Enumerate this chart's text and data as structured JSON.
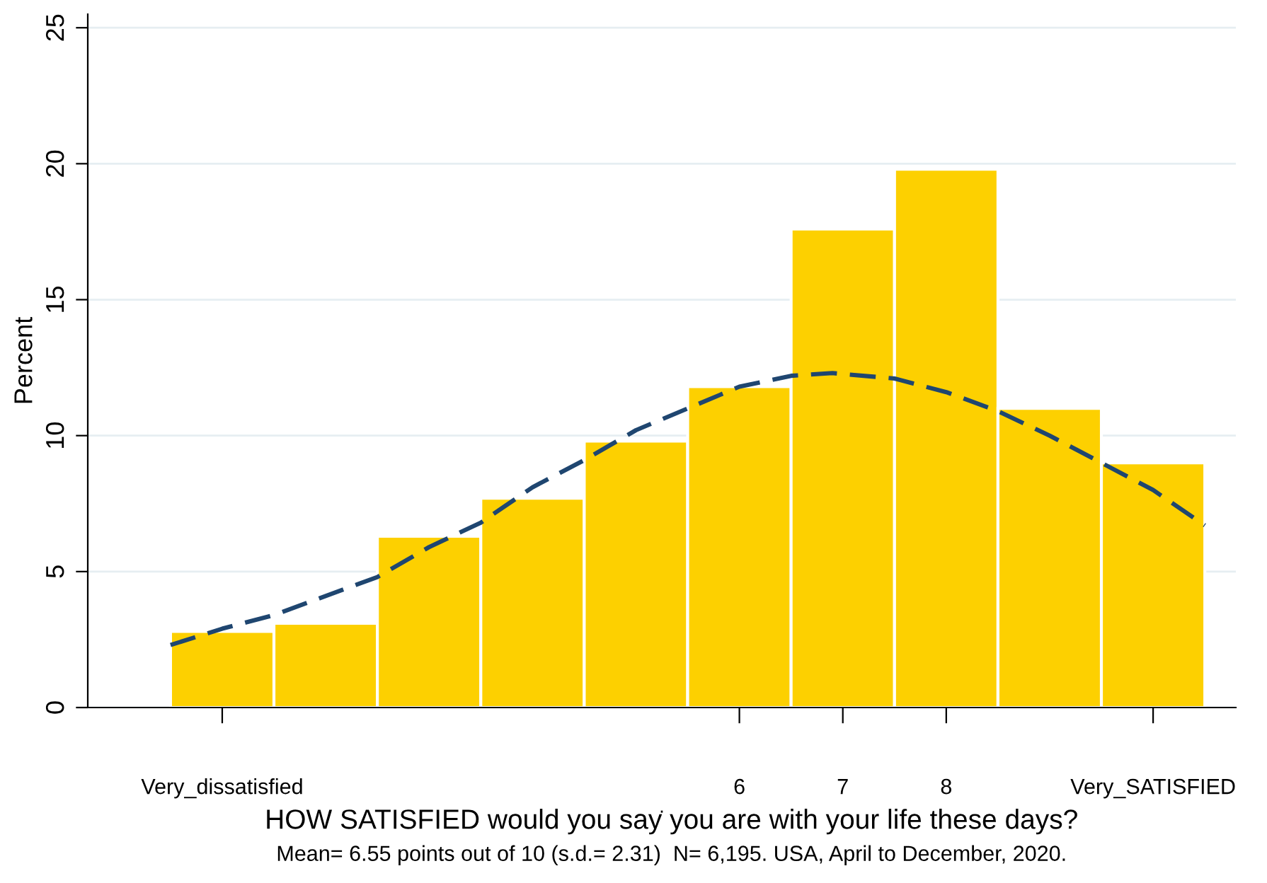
{
  "chart_data": {
    "type": "histogram",
    "ylabel": "Percent",
    "xlabel": ".",
    "annotations": [
      "HOW SATISFIED would you say you are with your life these days?",
      "Mean= 6.55 points out of 10 (s.d.= 2.31)  N= 6,195. USA, April to December, 2020."
    ],
    "bins": [
      0.5,
      1.5,
      2.5,
      3.5,
      4.5,
      5.5,
      6.5,
      7.5,
      8.5,
      9.5,
      10.5
    ],
    "series": [
      {
        "type": "histogram",
        "color": "#fdd000",
        "values": [
          2.8,
          3.1,
          6.3,
          7.7,
          9.8,
          11.8,
          17.6,
          19.8,
          11.0,
          9.0
        ]
      },
      {
        "type": "line",
        "color": "#1f4670",
        "line_style": "dashed",
        "x": [
          0.5,
          1.0,
          1.5,
          2.0,
          2.5,
          3.0,
          3.5,
          4.0,
          4.5,
          5.0,
          5.5,
          6.0,
          6.5,
          6.9,
          7.5,
          8.0,
          8.5,
          9.0,
          9.5,
          10.0,
          10.5
        ],
        "values": [
          2.3,
          2.9,
          3.4,
          4.1,
          4.8,
          5.9,
          6.8,
          8.1,
          9.1,
          10.2,
          11.0,
          11.8,
          12.2,
          12.3,
          12.1,
          11.6,
          10.9,
          10.0,
          9.0,
          8.0,
          6.7
        ]
      }
    ],
    "xlim": [
      -0.3,
      10.8
    ],
    "xticks": [
      {
        "value": 1,
        "label": "Very_dissatisfied"
      },
      6,
      7,
      8,
      {
        "value": 10,
        "label": "Very_SATISFIED"
      }
    ],
    "ylim": [
      0,
      25.5
    ],
    "yticks": [
      0,
      5,
      10,
      15,
      20,
      25
    ],
    "grid": "y",
    "legend": false
  }
}
